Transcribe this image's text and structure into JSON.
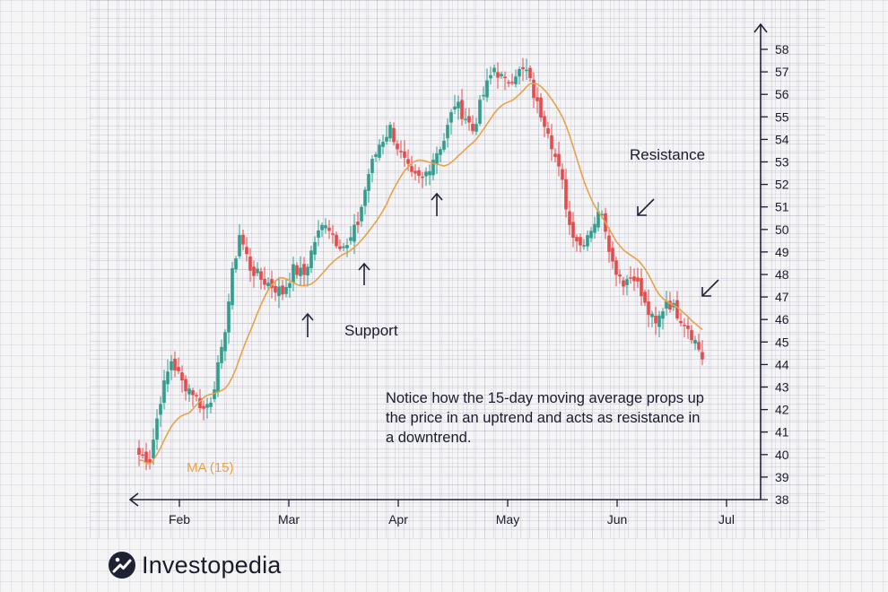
{
  "colors": {
    "up": "#2f9e8e",
    "down": "#e54b4b",
    "ma": "#e8a24a",
    "axis": "#1f2235",
    "text": "#1a1c2c"
  },
  "brand": {
    "name": "Investopedia",
    "icon": "investopedia-logo-icon"
  },
  "chart_data": {
    "type": "candlestick",
    "x_ticks": [
      "Feb",
      "Mar",
      "Apr",
      "May",
      "Jun",
      "Jul"
    ],
    "y_ticks": [
      38,
      39,
      40,
      41,
      42,
      43,
      44,
      45,
      46,
      47,
      48,
      49,
      50,
      51,
      52,
      53,
      54,
      55,
      56,
      57,
      58
    ],
    "ylim": [
      38,
      58.6
    ],
    "annotations": {
      "support": "Support",
      "resistance": "Resistance",
      "ma_label": "MA (15)",
      "note": "Notice how the 15-day moving average props up the price in an uptrend and acts as resistance in a downtrend."
    },
    "price_anchors": [
      [
        0,
        40.0
      ],
      [
        3,
        39.8
      ],
      [
        6,
        42.5
      ],
      [
        9,
        44.2
      ],
      [
        12,
        43.2
      ],
      [
        15,
        42.8
      ],
      [
        18,
        42.0
      ],
      [
        20,
        42.5
      ],
      [
        23,
        44.5
      ],
      [
        26,
        48.0
      ],
      [
        28,
        49.8
      ],
      [
        31,
        48.3
      ],
      [
        34,
        47.8
      ],
      [
        37,
        47.5
      ],
      [
        40,
        47.2
      ],
      [
        43,
        48.2
      ],
      [
        46,
        48.0
      ],
      [
        49,
        49.5
      ],
      [
        52,
        50.4
      ],
      [
        55,
        49.5
      ],
      [
        58,
        49.2
      ],
      [
        61,
        50.3
      ],
      [
        64,
        52.5
      ],
      [
        67,
        53.8
      ],
      [
        70,
        54.5
      ],
      [
        73,
        53.3
      ],
      [
        76,
        52.3
      ],
      [
        79,
        52.2
      ],
      [
        82,
        53.2
      ],
      [
        85,
        54.0
      ],
      [
        88,
        55.6
      ],
      [
        91,
        55.0
      ],
      [
        93,
        54.4
      ],
      [
        96,
        56.0
      ],
      [
        99,
        57.2
      ],
      [
        102,
        56.5
      ],
      [
        105,
        57.0
      ],
      [
        108,
        57.0
      ],
      [
        111,
        55.5
      ],
      [
        114,
        54.5
      ],
      [
        116,
        53.2
      ],
      [
        118,
        52.0
      ],
      [
        120,
        50.2
      ],
      [
        123,
        49.3
      ],
      [
        126,
        50.1
      ],
      [
        129,
        50.9
      ],
      [
        132,
        48.5
      ],
      [
        135,
        47.7
      ],
      [
        138,
        48.0
      ],
      [
        141,
        46.6
      ],
      [
        144,
        45.7
      ],
      [
        147,
        46.9
      ],
      [
        150,
        46.3
      ],
      [
        153,
        45.7
      ],
      [
        156,
        44.7
      ],
      [
        157,
        44.3
      ]
    ],
    "ma_period": 15,
    "trading_days": 158
  }
}
